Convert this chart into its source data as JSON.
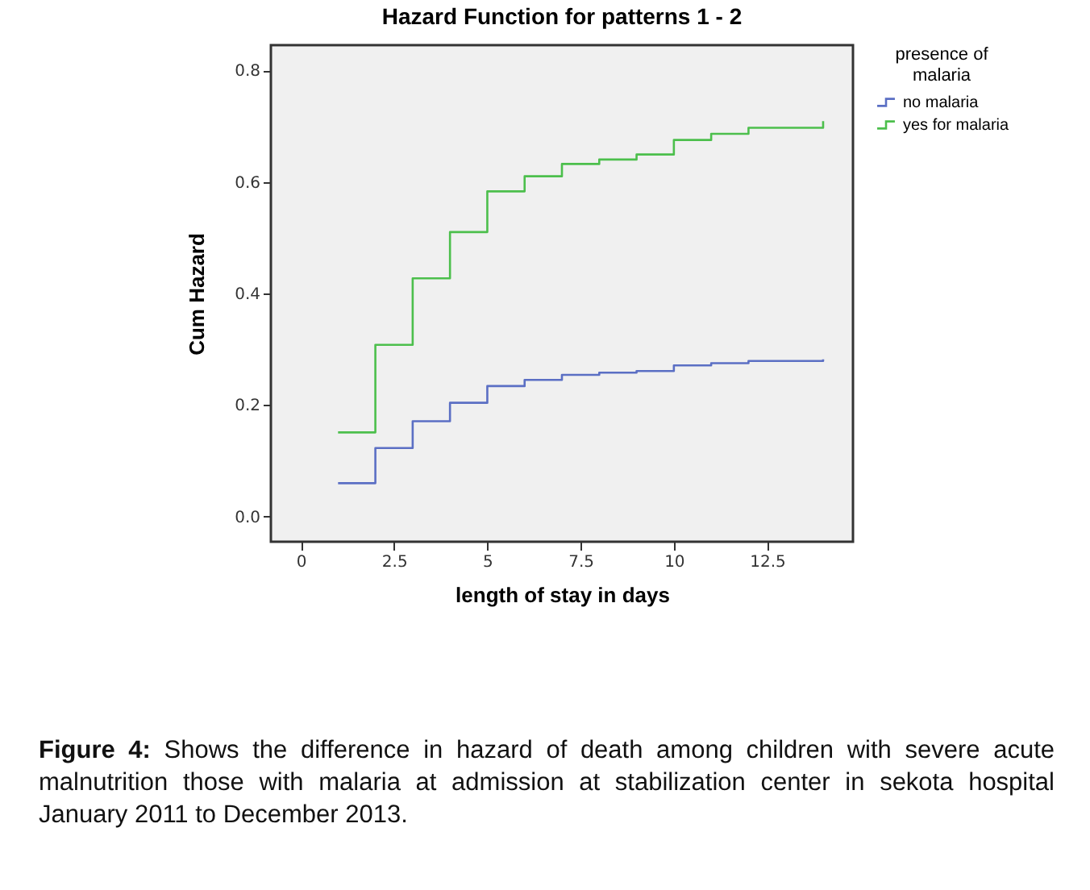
{
  "chart_data": {
    "type": "step",
    "title": "Hazard Function for patterns 1 - 2",
    "xlabel": "length of stay in days",
    "ylabel": "Cum Hazard",
    "legend_title": "presence of malaria",
    "legend": "top right",
    "grid": false,
    "x": [
      1,
      2,
      3,
      4,
      5,
      6,
      7,
      8,
      9,
      10,
      11,
      12,
      14
    ],
    "series": [
      {
        "name": "no malaria",
        "color": "#5b6fc4",
        "values": [
          0.06,
          0.123,
          0.171,
          0.204,
          0.234,
          0.245,
          0.254,
          0.258,
          0.261,
          0.271,
          0.275,
          0.279,
          0.282
        ]
      },
      {
        "name": "yes for malaria",
        "color": "#4cbf4c",
        "values": [
          0.151,
          0.308,
          0.427,
          0.51,
          0.583,
          0.61,
          0.632,
          0.64,
          0.649,
          0.675,
          0.686,
          0.697,
          0.709
        ]
      }
    ],
    "xlim": [
      -0.8,
      14.8
    ],
    "xticks": [
      0,
      2.5,
      5,
      7.5,
      10,
      12.5
    ],
    "ylim": [
      -0.045,
      0.845
    ],
    "yticks": [
      {
        "value": 0,
        "label": "0.0"
      },
      0.2,
      0.4,
      0.6,
      0.8
    ],
    "annotations": [
      "Figure 4: Shows the difference in hazard of death among children with severe acute malnutrition those with malaria at admission at stabilization center in sekota hospital January 2011 to December 2013."
    ]
  }
}
